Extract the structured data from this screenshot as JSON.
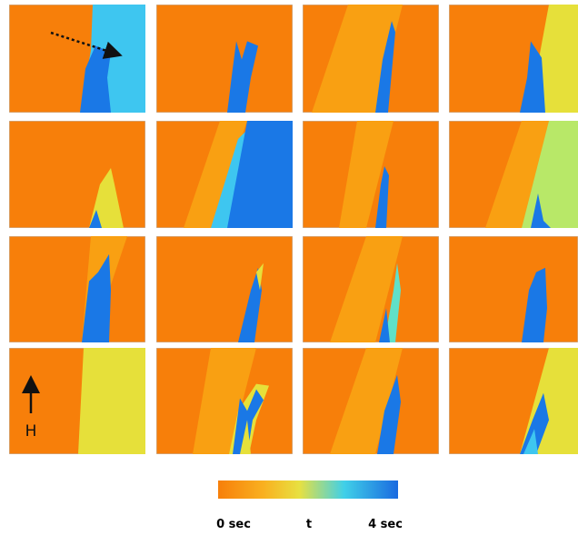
{
  "field_label": "H",
  "colorbar": {
    "start_label": "0 sec",
    "mid_label": "t",
    "end_label": "4 sec"
  }
}
